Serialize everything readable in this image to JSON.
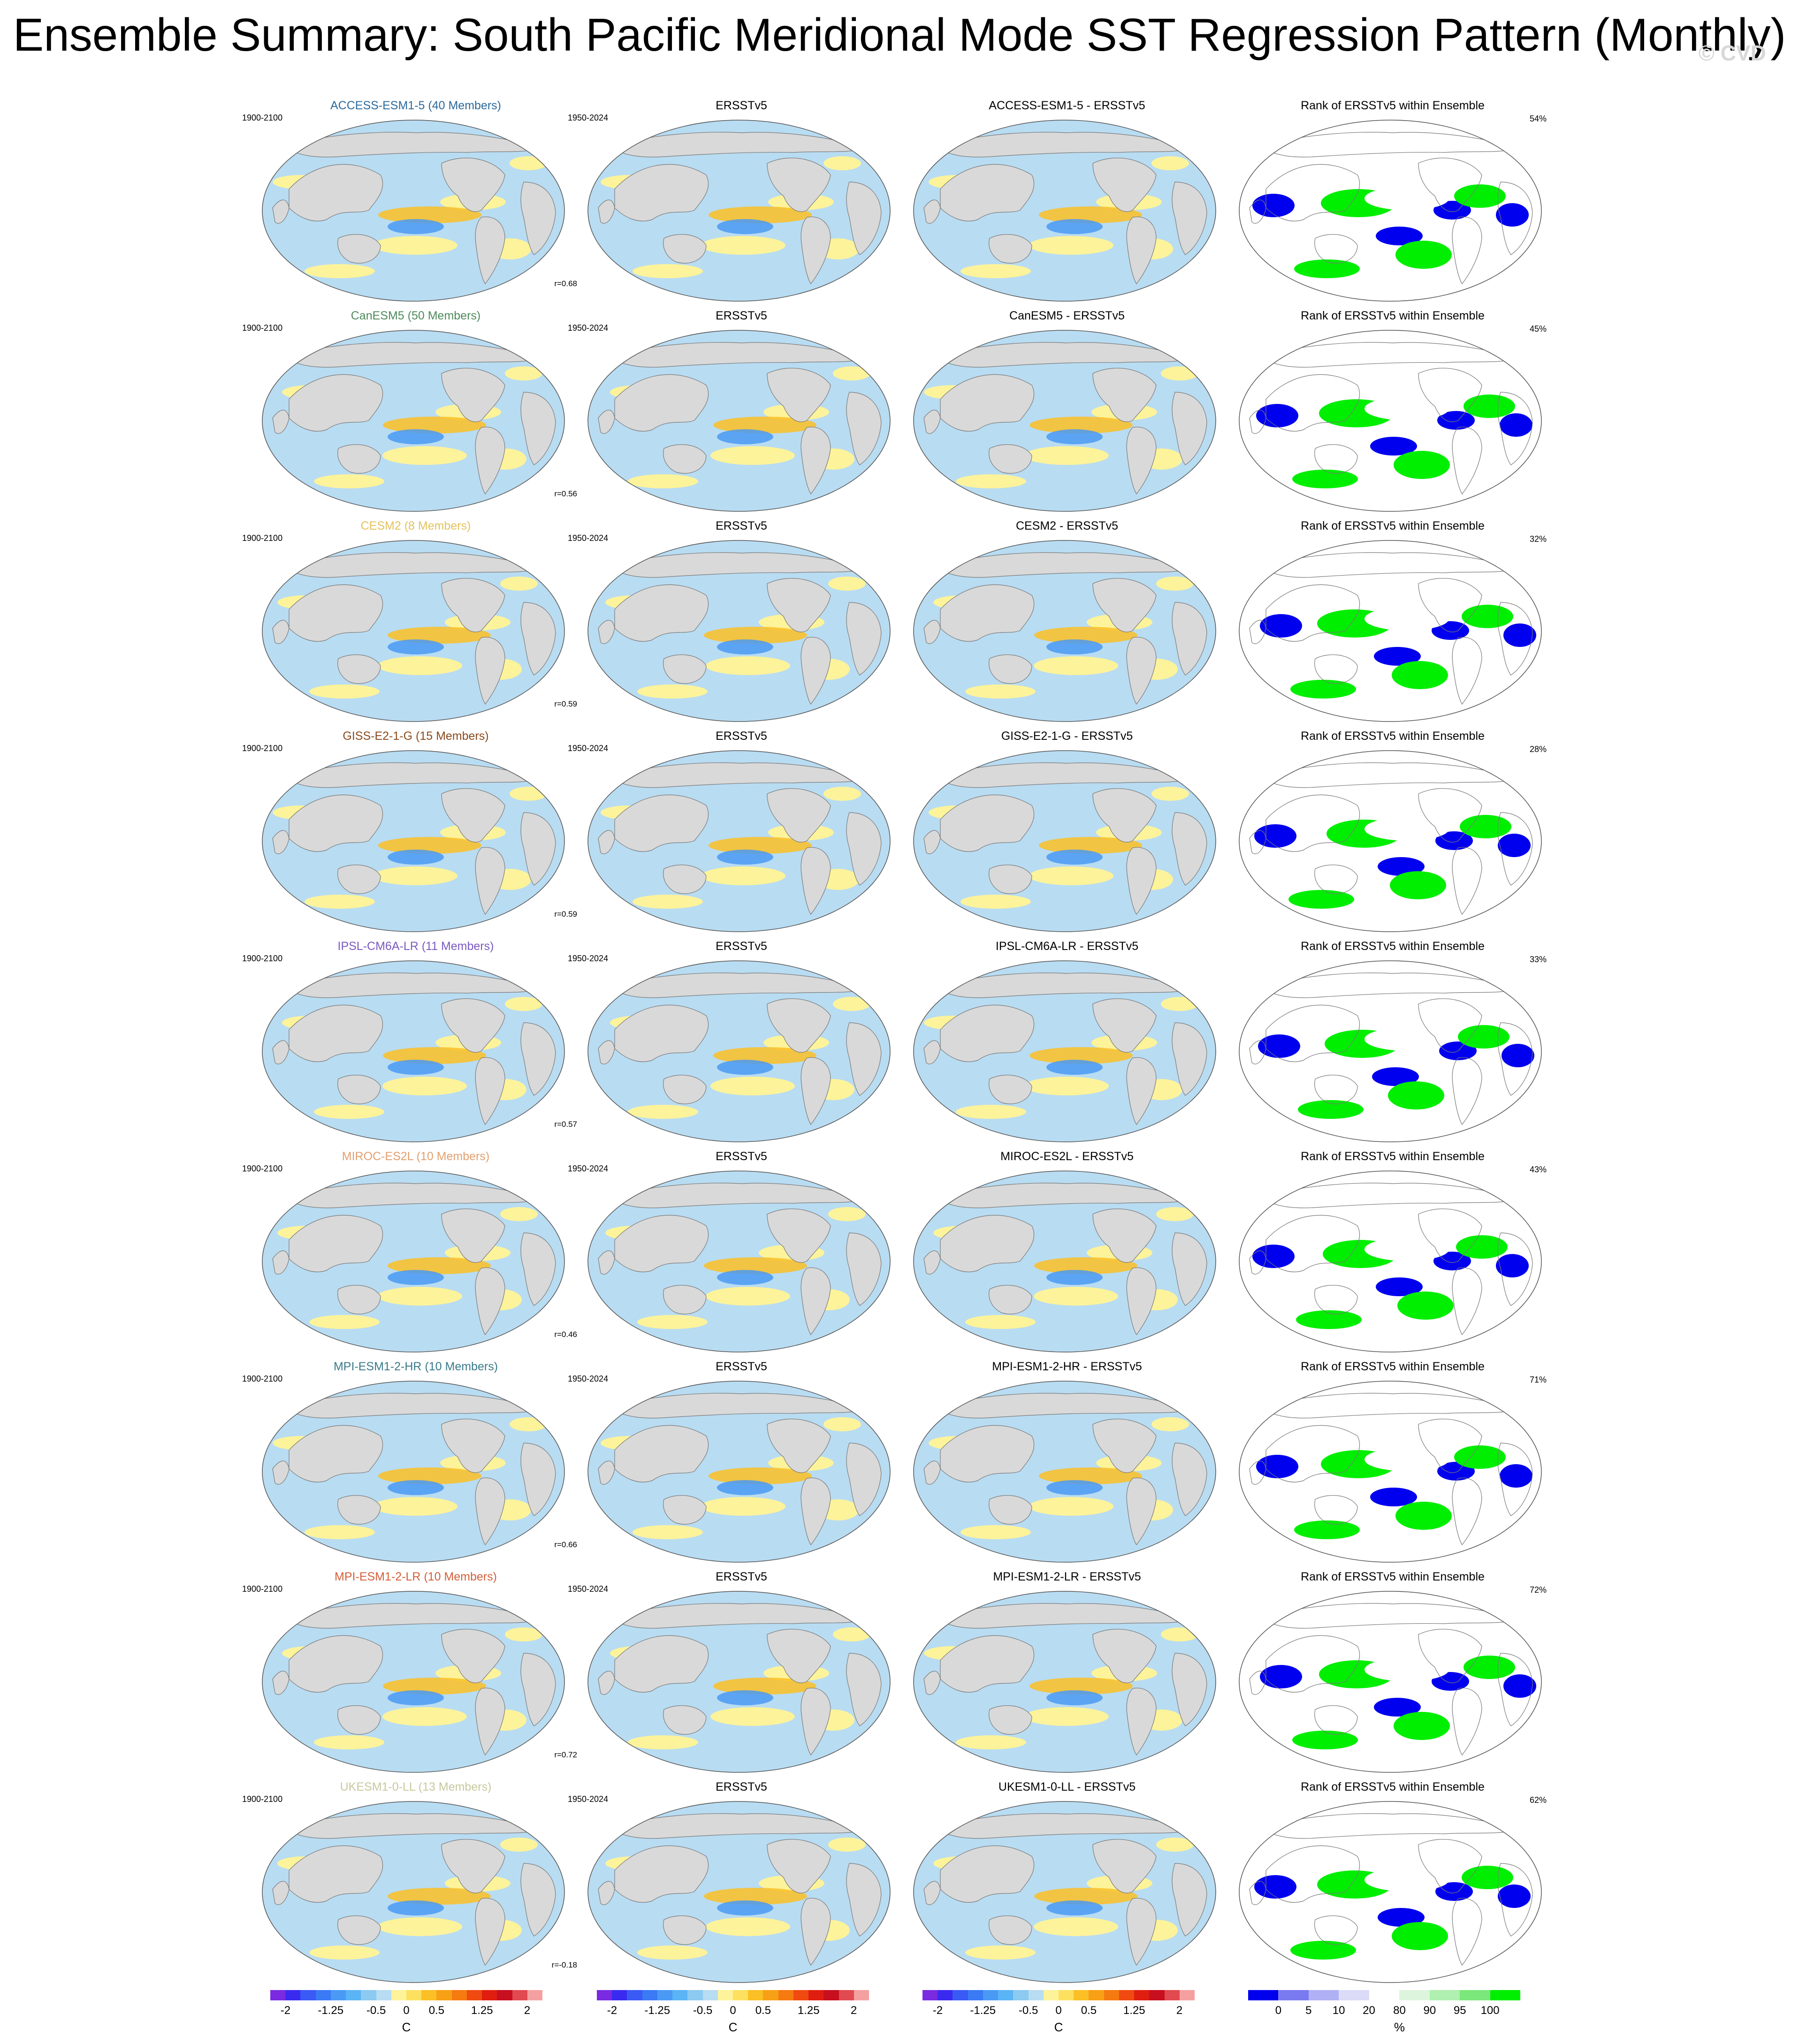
{
  "title": "Ensemble Summary: South Pacific Meridional Mode SST Regression Pattern (Monthly)",
  "watermark": "© CVD",
  "colors": {
    "ocean_light_blue": "#b8dcf2",
    "ocean_yellow": "#fdf39a",
    "land": "#d9d9d9",
    "rank_blue": "#0000ee",
    "rank_green": "#00ee00"
  },
  "column_headers": {
    "obs": "ERSSTv5",
    "rank": "Rank of ERSSTv5 within Ensemble",
    "model_period": "1900-2100",
    "obs_period": "1950-2024"
  },
  "rows": [
    {
      "model_label": "ACCESS-ESM1-5 (40 Members)",
      "model_color": "#2b6a9c",
      "diff_label": "ACCESS-ESM1-5 - ERSSTv5",
      "corr": "r=0.68",
      "rank_pct": "54%"
    },
    {
      "model_label": "CanESM5 (50 Members)",
      "model_color": "#4e8a5a",
      "diff_label": "CanESM5 - ERSSTv5",
      "corr": "r=0.56",
      "rank_pct": "45%"
    },
    {
      "model_label": "CESM2 (8 Members)",
      "model_color": "#e3c35b",
      "diff_label": "CESM2 - ERSSTv5",
      "corr": "r=0.59",
      "rank_pct": "32%"
    },
    {
      "model_label": "GISS-E2-1-G (15 Members)",
      "model_color": "#8a4a1c",
      "diff_label": "GISS-E2-1-G - ERSSTv5",
      "corr": "r=0.59",
      "rank_pct": "28%"
    },
    {
      "model_label": "IPSL-CM6A-LR (11 Members)",
      "model_color": "#7a5ac0",
      "diff_label": "IPSL-CM6A-LR - ERSSTv5",
      "corr": "r=0.57",
      "rank_pct": "33%"
    },
    {
      "model_label": "MIROC-ES2L (10 Members)",
      "model_color": "#e2a070",
      "diff_label": "MIROC-ES2L - ERSSTv5",
      "corr": "r=0.46",
      "rank_pct": "43%"
    },
    {
      "model_label": "MPI-ESM1-2-HR (10 Members)",
      "model_color": "#3a7a8a",
      "diff_label": "MPI-ESM1-2-HR - ERSSTv5",
      "corr": "r=0.66",
      "rank_pct": "71%"
    },
    {
      "model_label": "MPI-ESM1-2-LR (10 Members)",
      "model_color": "#d2603a",
      "diff_label": "MPI-ESM1-2-LR - ERSSTv5",
      "corr": "r=0.72",
      "rank_pct": "72%"
    },
    {
      "model_label": "UKESM1-0-LL (13 Members)",
      "model_color": "#c8c8a0",
      "diff_label": "UKESM1-0-LL - ERSSTv5",
      "corr": "r=-0.18",
      "rank_pct": "62%"
    }
  ],
  "sst_colorbar": {
    "unit": "C",
    "ticks": [
      "-2",
      "-1.25",
      "-0.5",
      "0",
      "0.5",
      "1.25",
      "2"
    ],
    "colors": [
      "#7a2ae0",
      "#3a2af0",
      "#3a5af5",
      "#3a7af5",
      "#4a9af5",
      "#5ab4f5",
      "#8ccaf2",
      "#b8dcf2",
      "#fdf39a",
      "#fde060",
      "#fbc025",
      "#f8a015",
      "#f57a10",
      "#f04a10",
      "#e01e10",
      "#c80f20",
      "#e04a50",
      "#f5a0a0"
    ]
  },
  "rank_colorbar": {
    "unit": "%",
    "ticks": [
      "0",
      "5",
      "10",
      "20",
      "80",
      "90",
      "95",
      "100"
    ],
    "colors": [
      "#0000ee",
      "#7a7af0",
      "#b0b0f5",
      "#dcdcf8",
      "#ffffff",
      "#ddf5dd",
      "#b0f0b0",
      "#7ae87a",
      "#00ee00"
    ]
  }
}
